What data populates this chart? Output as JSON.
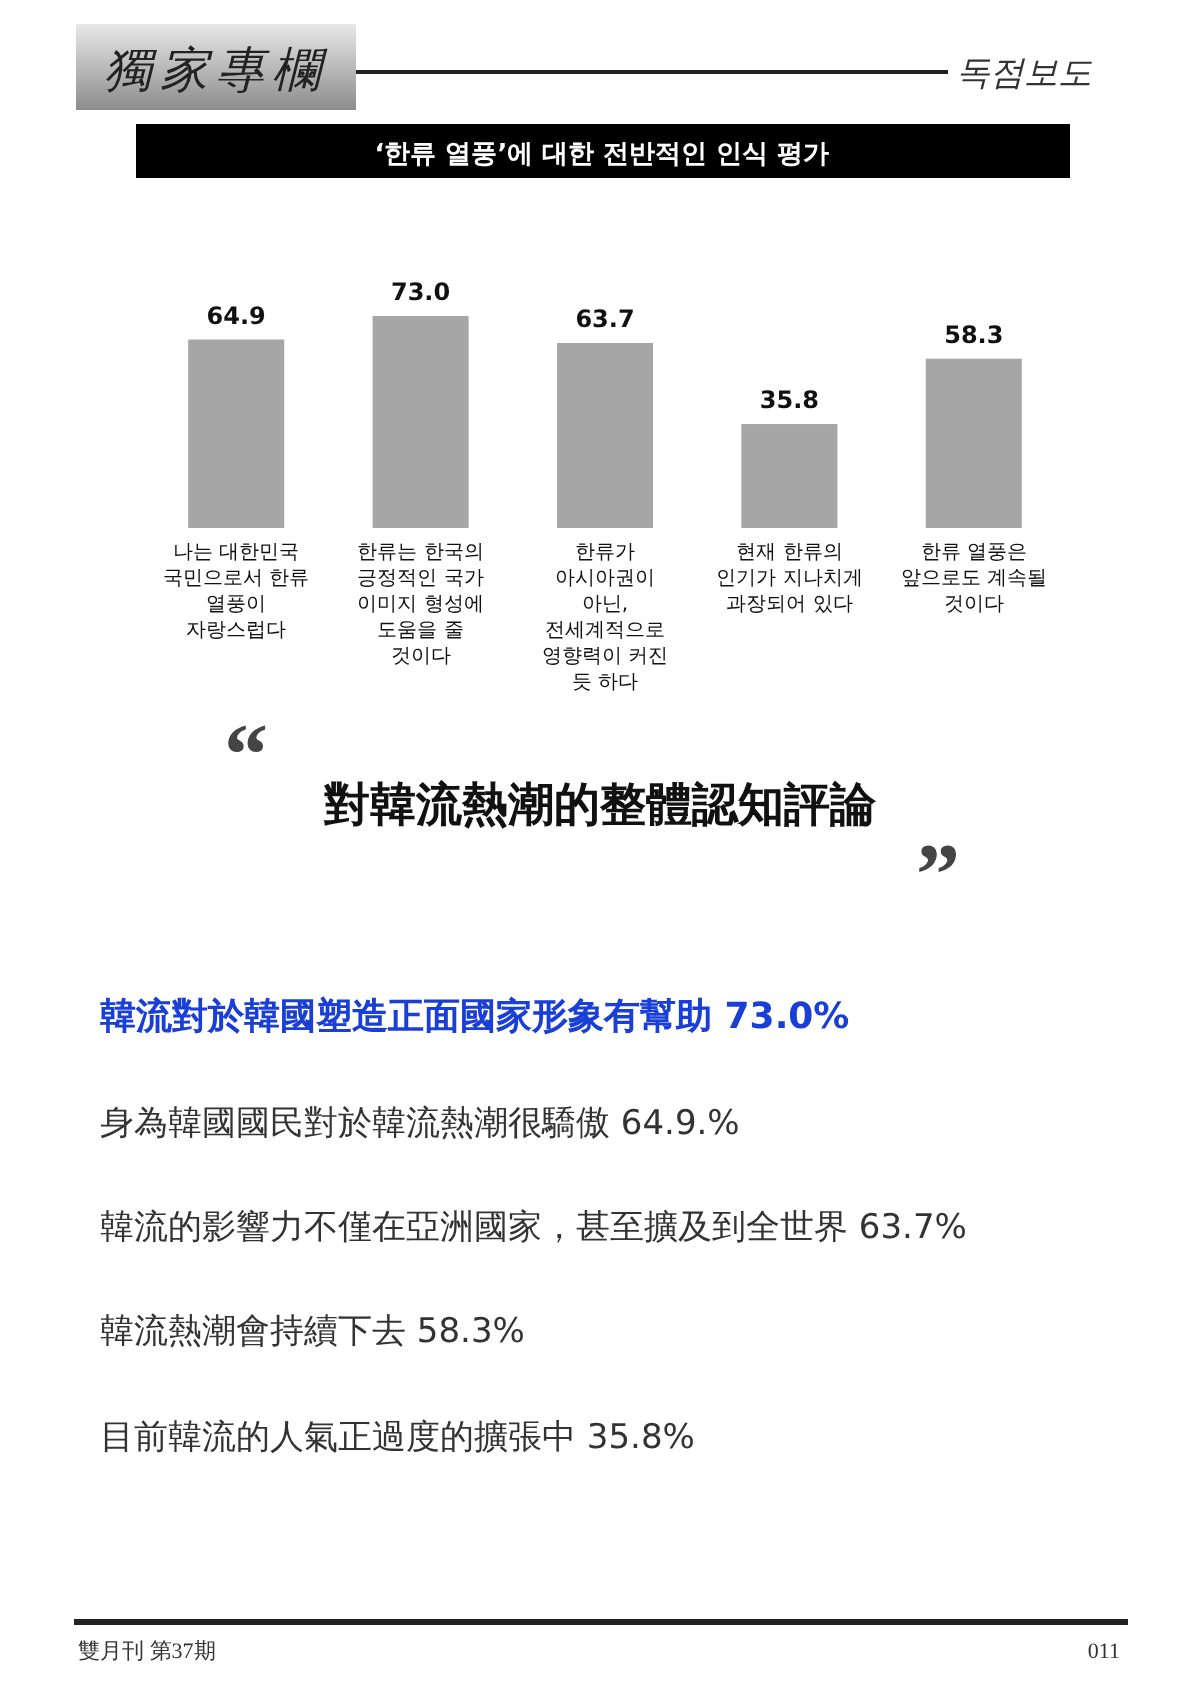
{
  "chart_data": {
    "type": "bar",
    "title": "‘한류 열풍’에 대한 전반적인 인식 평가",
    "subtitle": "對韓流熱潮的整體認知評論",
    "categories": [
      "나는 대한민국 국민으로서 한류 열풍이 자랑스럽다",
      "한류는 한국의 긍정적인 국가 이미지 형성에 도움을 줄 것이다",
      "한류가 아시아권이 아닌, 전세계적으로 영향력이 커진 듯 하다",
      "현재 한류의 인기가 지나치게 과장되어 있다",
      "한류 열풍은 앞으로도 계속될 것이다"
    ],
    "values": [
      64.9,
      73.0,
      63.7,
      35.8,
      58.3
    ],
    "value_labels": [
      "64.9",
      "73.0",
      "63.7",
      "35.8",
      "58.3"
    ],
    "color": "#a6a6a6",
    "annotations": [
      "獨家專欄",
      "독점보도",
      "“",
      "”",
      "韓流對於韓國塑造正面國家形象有幫助 73.0%",
      "身為韓國國民對於韓流熱潮很驕傲 64.9.%",
      "韓流的影響力不僅在亞洲國家，甚至擴及到全世界 63.7%",
      "韓流熱潮會持續下去 58.3%",
      "目前韓流的人氣正過度的擴張中 35.8%",
      "雙月刊 第37期",
      "011"
    ]
  }
}
